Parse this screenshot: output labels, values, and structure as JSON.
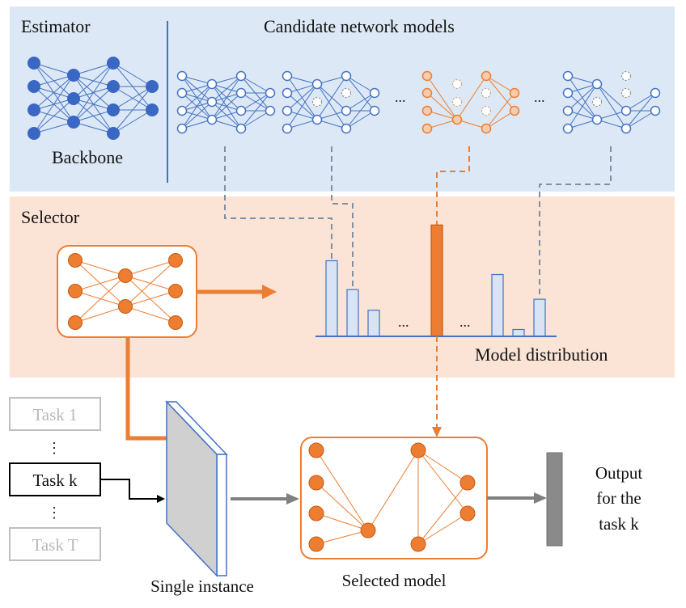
{
  "estimator": {
    "title": "Estimator",
    "backbone_label": "Backbone",
    "candidates_title": "Candidate network models",
    "ellipsis_1": "...",
    "ellipsis_2": "..."
  },
  "selector": {
    "title": "Selector",
    "distribution_label": "Model distribution",
    "ellipsis_1": "...",
    "ellipsis_2": "..."
  },
  "tasks": {
    "items": [
      "Task 1",
      "Task k",
      "Task T"
    ],
    "vdots": "⋮"
  },
  "bottom": {
    "single_instance_label": "Single instance",
    "selected_model_label": "Selected model",
    "output_lines": [
      "Output",
      "for the",
      "task k"
    ]
  },
  "colors": {
    "estimator_bg": "#dce8f5",
    "selector_bg": "#fbe3d6",
    "blue": "#4472c4",
    "dark_blue": "#3a66c4",
    "orange": "#ed7d31",
    "gray_dashed": "#7f8fa6",
    "bar_fill": "#dae3f3"
  },
  "chart_data": {
    "type": "bar",
    "title": "",
    "groups": [
      {
        "values": [
          0.55,
          0.34,
          0.19
        ],
        "highlight": [
          false,
          false,
          false
        ]
      },
      {
        "values": [
          0.81
        ],
        "highlight": [
          true
        ]
      },
      {
        "values": [
          0.45,
          0.05,
          0.27
        ],
        "highlight": [
          false,
          false,
          false
        ]
      }
    ]
  }
}
